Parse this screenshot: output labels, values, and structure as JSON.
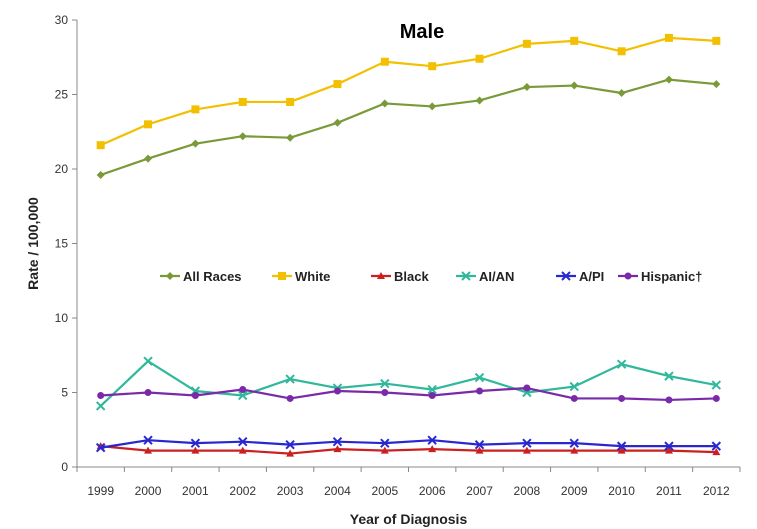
{
  "chart_data": {
    "type": "line",
    "title": "Male",
    "xlabel": "Year of Diagnosis",
    "ylabel": "Rate / 100,000",
    "x": [
      "1999",
      "2000",
      "2001",
      "2002",
      "2003",
      "2004",
      "2005",
      "2006",
      "2007",
      "2008",
      "2009",
      "2010",
      "2011",
      "2012"
    ],
    "ylim": [
      0,
      30
    ],
    "yticks": [
      0,
      5,
      10,
      15,
      20,
      25,
      30
    ],
    "grid": false,
    "legend_position": "center",
    "series": [
      {
        "name": "All Races",
        "color": "#7a9a3a",
        "marker": "diamond",
        "values": [
          19.6,
          20.7,
          21.7,
          22.2,
          22.1,
          23.1,
          24.4,
          24.2,
          24.6,
          25.5,
          25.6,
          25.1,
          26.0,
          25.7
        ]
      },
      {
        "name": "White",
        "color": "#f2c000",
        "marker": "square",
        "values": [
          21.6,
          23.0,
          24.0,
          24.5,
          24.5,
          25.7,
          27.2,
          26.9,
          27.4,
          28.4,
          28.6,
          27.9,
          28.8,
          28.6
        ]
      },
      {
        "name": "Black",
        "color": "#cc2020",
        "marker": "triangle",
        "values": [
          1.4,
          1.1,
          1.1,
          1.1,
          0.9,
          1.2,
          1.1,
          1.2,
          1.1,
          1.1,
          1.1,
          1.1,
          1.1,
          1.0
        ]
      },
      {
        "name": "AI/AN",
        "color": "#30b89a",
        "marker": "cross",
        "values": [
          4.1,
          7.1,
          5.1,
          4.8,
          5.9,
          5.3,
          5.6,
          5.2,
          6.0,
          5.0,
          5.4,
          6.9,
          6.1,
          5.5
        ]
      },
      {
        "name": "A/PI",
        "color": "#2828d0",
        "marker": "cross",
        "values": [
          1.3,
          1.8,
          1.6,
          1.7,
          1.5,
          1.7,
          1.6,
          1.8,
          1.5,
          1.6,
          1.6,
          1.4,
          1.4,
          1.4
        ]
      },
      {
        "name": "Hispanic†",
        "color": "#7a2aa8",
        "marker": "circle",
        "values": [
          4.8,
          5.0,
          4.8,
          5.2,
          4.6,
          5.1,
          5.0,
          4.8,
          5.1,
          5.3,
          4.6,
          4.6,
          4.5,
          4.6
        ]
      }
    ]
  }
}
